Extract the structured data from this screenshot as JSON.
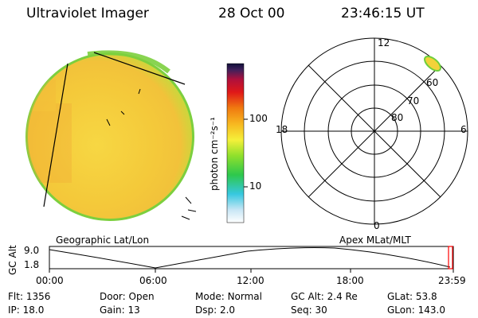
{
  "header": {
    "instrument": "Ultraviolet Imager",
    "date": "28 Oct 00",
    "time": "23:46:15 UT"
  },
  "colorbar": {
    "unit_label": "photon cm⁻²s⁻¹",
    "ticks": [
      "100",
      "10"
    ]
  },
  "polar": {
    "mlt_labels": {
      "top": "12",
      "bottom": "0",
      "left": "18",
      "right": "6"
    },
    "lat_labels": [
      "80",
      "70",
      "60"
    ]
  },
  "timeline": {
    "left_caption": "Geographic Lat/Lon",
    "right_caption": "Apex MLat/MLT",
    "axis_title": "GC Alt",
    "y_ticks": [
      "9.0",
      "1.8"
    ],
    "x_ticks": [
      "00:00",
      "06:00",
      "12:00",
      "18:00",
      "23:59"
    ]
  },
  "status": {
    "row1": [
      {
        "key": "Flt:",
        "value": "1356"
      },
      {
        "key": "Door:",
        "value": "Open"
      },
      {
        "key": "Mode:",
        "value": "Normal"
      },
      {
        "key": "GC Alt:",
        "value": "2.4 Re"
      },
      {
        "key": "GLat:",
        "value": "53.8"
      }
    ],
    "row2": [
      {
        "key": "IP:",
        "value": "18.0"
      },
      {
        "key": "Gain:",
        "value": "13"
      },
      {
        "key": "Dsp:",
        "value": "2.0"
      },
      {
        "key": "Seq:",
        "value": "30"
      },
      {
        "key": "GLon:",
        "value": "143.0"
      }
    ]
  },
  "colors": {
    "disk_main": "#f7d640",
    "disk_edge": "#6ecf3c",
    "marker": "#ff0000"
  }
}
